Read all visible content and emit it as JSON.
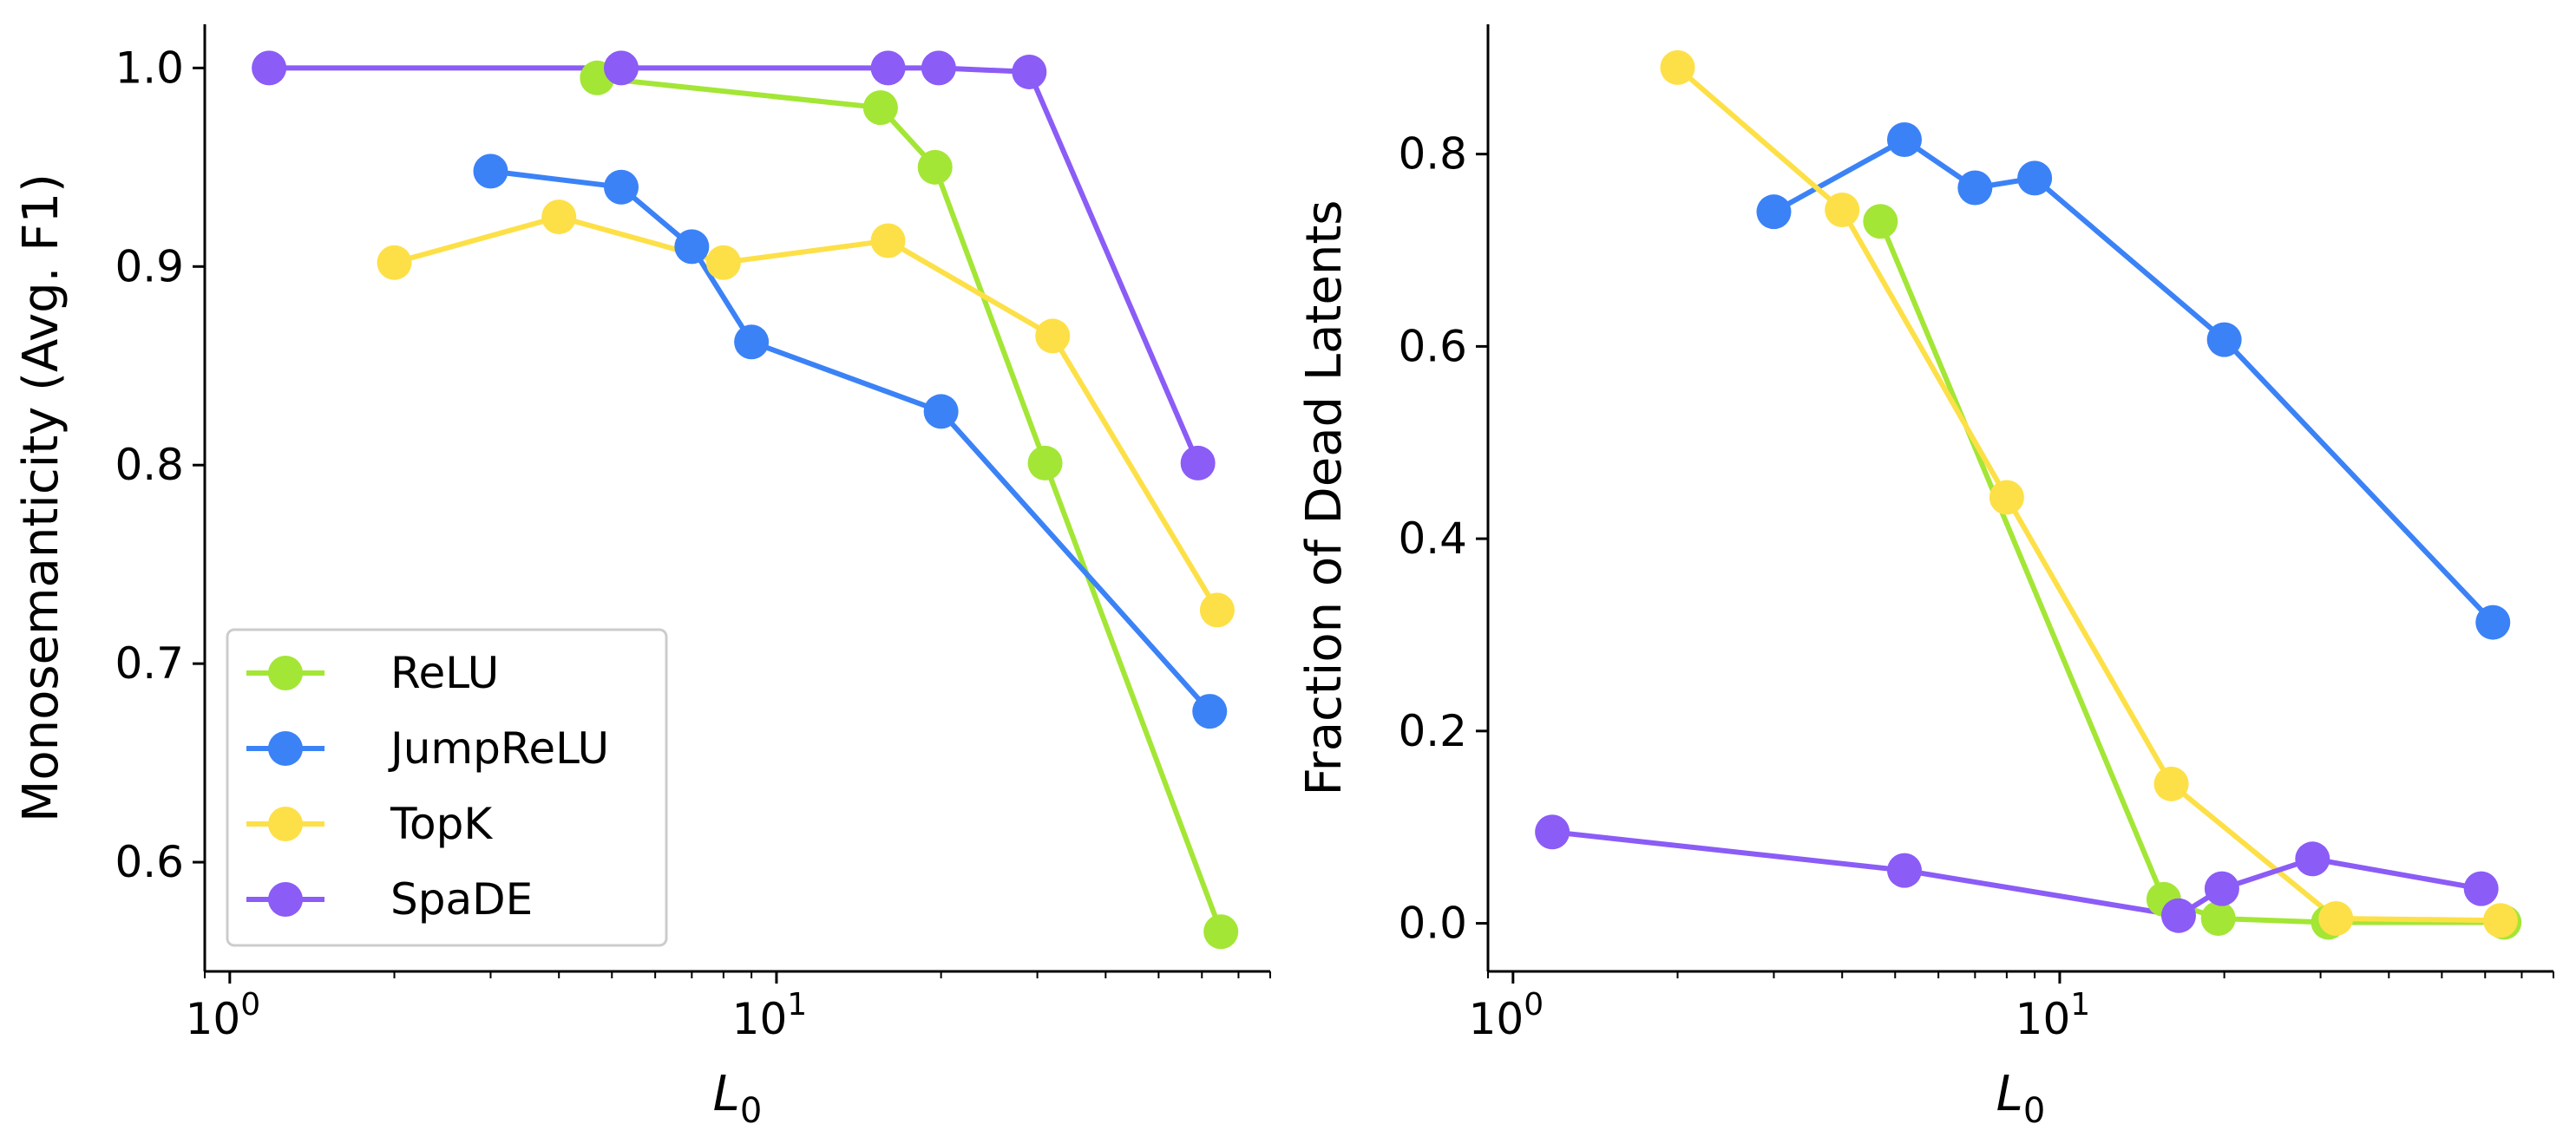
{
  "figure": {
    "colors": {
      "relu": "#a3e635",
      "jumprelu": "#3b82f6",
      "topk": "#fde047",
      "spade": "#8b5cf6"
    }
  },
  "chart_data": [
    {
      "type": "line",
      "xscale": "log",
      "xlabel_main": "L",
      "xlabel_sub": "0",
      "ylabel": "Monosemanticity (Avg. F1)",
      "xlim": [
        0.9,
        80
      ],
      "ylim": [
        0.545,
        1.022
      ],
      "x_ticks": [
        {
          "base": "10",
          "exp": "0",
          "value": 1
        },
        {
          "base": "10",
          "exp": "1",
          "value": 10
        }
      ],
      "y_ticks": [
        {
          "label": "0.6",
          "value": 0.6
        },
        {
          "label": "0.7",
          "value": 0.7
        },
        {
          "label": "0.8",
          "value": 0.8
        },
        {
          "label": "0.9",
          "value": 0.9
        },
        {
          "label": "1.0",
          "value": 1.0
        }
      ],
      "legend_position": "lower-left",
      "series": [
        {
          "name": "ReLU",
          "color": "#a3e635",
          "x": [
            4.7,
            15.5,
            19.5,
            31,
            65
          ],
          "y": [
            0.995,
            0.98,
            0.95,
            0.801,
            0.565
          ]
        },
        {
          "name": "JumpReLU",
          "color": "#3b82f6",
          "x": [
            3,
            5.2,
            7,
            9,
            20,
            62
          ],
          "y": [
            0.948,
            0.94,
            0.91,
            0.862,
            0.827,
            0.676
          ]
        },
        {
          "name": "TopK",
          "color": "#fde047",
          "x": [
            2,
            4,
            8,
            16,
            32,
            64
          ],
          "y": [
            0.902,
            0.925,
            0.902,
            0.913,
            0.865,
            0.727
          ]
        },
        {
          "name": "SpaDE",
          "color": "#8b5cf6",
          "x": [
            1.18,
            5.2,
            16,
            19.8,
            29,
            59
          ],
          "y": [
            1.0,
            1.0,
            1.0,
            1.0,
            0.998,
            0.801
          ]
        }
      ]
    },
    {
      "type": "line",
      "xscale": "log",
      "xlabel_main": "L",
      "xlabel_sub": "0",
      "ylabel": "Fraction of Dead Latents",
      "xlim": [
        0.9,
        80
      ],
      "ylim": [
        -0.05,
        0.935
      ],
      "x_ticks": [
        {
          "base": "10",
          "exp": "0",
          "value": 1
        },
        {
          "base": "10",
          "exp": "1",
          "value": 10
        }
      ],
      "y_ticks": [
        {
          "label": "0.0",
          "value": 0.0
        },
        {
          "label": "0.2",
          "value": 0.2
        },
        {
          "label": "0.4",
          "value": 0.4
        },
        {
          "label": "0.6",
          "value": 0.6
        },
        {
          "label": "0.8",
          "value": 0.8
        }
      ],
      "series": [
        {
          "name": "ReLU",
          "color": "#a3e635",
          "x": [
            4.7,
            15.5,
            19.5,
            31,
            65
          ],
          "y": [
            0.73,
            0.025,
            0.005,
            0.001,
            0.001
          ]
        },
        {
          "name": "JumpReLU",
          "color": "#3b82f6",
          "x": [
            3,
            5.2,
            7,
            9,
            20,
            62
          ],
          "y": [
            0.74,
            0.815,
            0.765,
            0.775,
            0.607,
            0.313
          ]
        },
        {
          "name": "TopK",
          "color": "#fde047",
          "x": [
            2,
            4,
            8,
            16,
            32,
            64
          ],
          "y": [
            0.89,
            0.742,
            0.443,
            0.145,
            0.005,
            0.003
          ]
        },
        {
          "name": "SpaDE",
          "color": "#8b5cf6",
          "x": [
            1.18,
            5.2,
            16.5,
            19.8,
            29,
            59
          ],
          "y": [
            0.095,
            0.055,
            0.008,
            0.036,
            0.067,
            0.036
          ]
        }
      ]
    }
  ]
}
